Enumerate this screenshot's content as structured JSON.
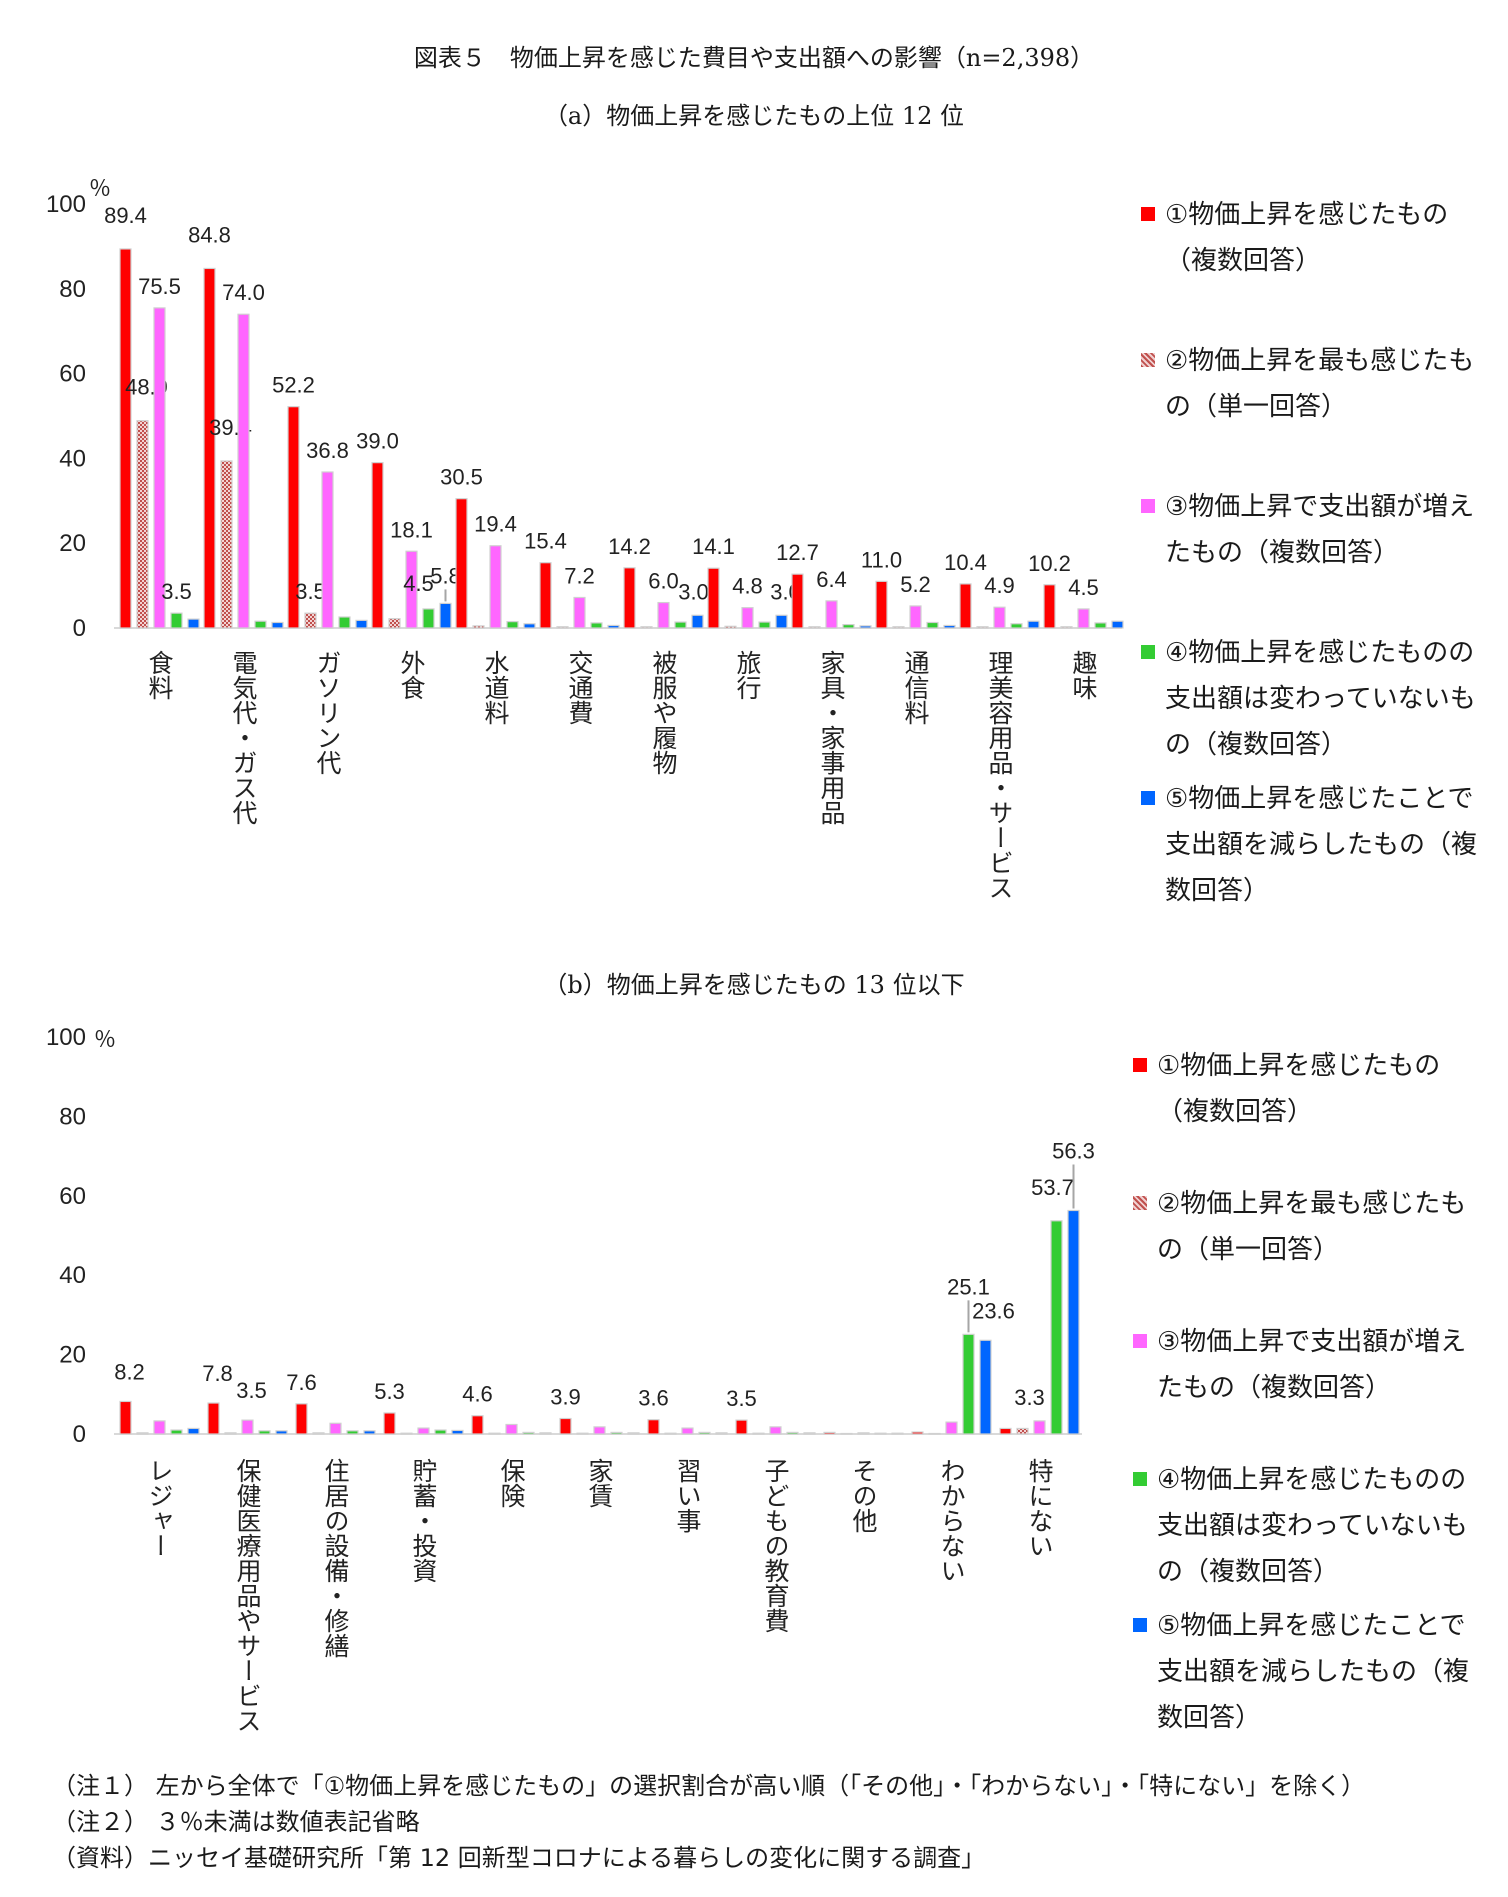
{
  "titles": {
    "main": "図表５　物価上昇を感じた費目や支出額への影響（n=2,398）",
    "sub_a": "（a）物価上昇を感じたもの上位 12 位",
    "sub_b": "（b）物価上昇を感じたもの 13 位以下"
  },
  "colors": {
    "s1": "#ff0000",
    "s2": "#c0504d",
    "s3": "#ff66ff",
    "s4": "#33cc33",
    "s5": "#0066ff"
  },
  "legend": [
    "①物価上昇を感じたもの（複数回答）",
    "②物価上昇を最も感じたもの（単一回答）",
    "③物価上昇で支出額が増えたもの（複数回答）",
    "④物価上昇を感じたものの支出額は変わっていないもの（複数回答）",
    "⑤物価上昇を感じたことで支出額を減らしたもの（複数回答）"
  ],
  "chart_data": [
    {
      "type": "bar",
      "title": "（a）物価上昇を感じたもの上位 12 位",
      "ylabel": "％",
      "ylim": [
        0,
        100
      ],
      "yticks": [
        0,
        20,
        40,
        60,
        80,
        100
      ],
      "categories": [
        "食料",
        "電気代・ガス代",
        "ガソリン代",
        "外食",
        "水道料",
        "交通費",
        "被服や履物",
        "旅行",
        "家具・家事用品",
        "通信料",
        "理美容用品・サービス",
        "趣味"
      ],
      "series": [
        {
          "name": "①物価上昇を感じたもの（複数回答）",
          "values": [
            89.4,
            84.8,
            52.2,
            39.0,
            30.5,
            15.4,
            14.2,
            14.1,
            12.7,
            11.0,
            10.4,
            10.2
          ],
          "labels": [
            "89.4",
            "84.8",
            "52.2",
            "39.0",
            "30.5",
            "15.4",
            "14.2",
            "14.1",
            "12.7",
            "11.0",
            "10.4",
            "10.2"
          ]
        },
        {
          "name": "②物価上昇を最も感じたもの（単一回答）",
          "values": [
            48.9,
            39.4,
            3.5,
            2.2,
            0.5,
            0.3,
            0.3,
            0.4,
            0.3,
            0.3,
            0.3,
            0.3
          ],
          "labels": [
            "48.9",
            "39.4",
            "3.5",
            "",
            "",
            "",
            "",
            "",
            "",
            "",
            "",
            ""
          ]
        },
        {
          "name": "③物価上昇で支出額が増えたもの（複数回答）",
          "values": [
            75.5,
            74.0,
            36.8,
            18.1,
            19.4,
            7.2,
            6.0,
            4.8,
            6.4,
            5.2,
            4.9,
            4.5
          ],
          "labels": [
            "75.5",
            "74.0",
            "36.8",
            "18.1",
            "19.4",
            "7.2",
            "6.0",
            "4.8",
            "6.4",
            "5.2",
            "4.9",
            "4.5"
          ]
        },
        {
          "name": "④物価上昇を感じたものの支出額は変わっていないもの（複数回答）",
          "values": [
            3.5,
            1.6,
            2.6,
            4.5,
            1.5,
            1.2,
            1.4,
            1.4,
            0.8,
            1.3,
            1.0,
            1.2
          ],
          "labels": [
            "3.5",
            "",
            "",
            "4.5",
            "",
            "",
            "",
            "",
            "",
            "",
            "",
            ""
          ]
        },
        {
          "name": "⑤物価上昇を感じたことで支出額を減らしたもの（複数回答）",
          "values": [
            2.1,
            1.3,
            1.8,
            5.8,
            1.0,
            0.6,
            3.0,
            3.0,
            0.5,
            0.6,
            1.6,
            1.6
          ],
          "labels": [
            "",
            "",
            "",
            "5.8",
            "",
            "",
            "3.0",
            "3.0",
            "",
            "",
            "",
            ""
          ]
        }
      ]
    },
    {
      "type": "bar",
      "title": "（b）物価上昇を感じたもの 13 位以下",
      "ylabel": "％",
      "ylim": [
        0,
        100
      ],
      "yticks": [
        0,
        20,
        40,
        60,
        80,
        100
      ],
      "categories": [
        "レジャー",
        "保健医療用品やサービス",
        "住居の設備・修繕",
        "貯蓄・投資",
        "保険",
        "家賃",
        "習い事",
        "子どもの教育費",
        "その他",
        "わからない",
        "特にない"
      ],
      "series": [
        {
          "name": "①物価上昇を感じたもの（複数回答）",
          "values": [
            8.2,
            7.8,
            7.6,
            5.3,
            4.6,
            3.9,
            3.6,
            3.5,
            0.4,
            0.5,
            1.4
          ],
          "labels": [
            "8.2",
            "7.8",
            "7.6",
            "5.3",
            "4.6",
            "3.9",
            "3.6",
            "3.5",
            "",
            "",
            ""
          ]
        },
        {
          "name": "②物価上昇を最も感じたもの（単一回答）",
          "values": [
            0.3,
            0.3,
            0.3,
            0.2,
            0.2,
            0.2,
            0.2,
            0.2,
            0.1,
            0.1,
            1.4
          ],
          "labels": [
            "",
            "",
            "",
            "",
            "",
            "",
            "",
            "",
            "",
            "",
            ""
          ]
        },
        {
          "name": "③物価上昇で支出額が増えたもの（複数回答）",
          "values": [
            3.3,
            3.5,
            2.7,
            1.5,
            2.4,
            1.8,
            1.5,
            1.8,
            0.3,
            3.0,
            3.3
          ],
          "labels": [
            "",
            "3.5",
            "",
            "",
            "",
            "",
            "",
            "",
            "",
            "",
            "3.3"
          ]
        },
        {
          "name": "④物価上昇を感じたものの支出額は変わっていないもの（複数回答）",
          "values": [
            1.0,
            0.8,
            0.8,
            1.0,
            0.4,
            0.4,
            0.4,
            0.4,
            0.2,
            25.1,
            53.7
          ],
          "labels": [
            "",
            "",
            "",
            "",
            "",
            "",
            "",
            "",
            "",
            "25.1",
            "53.7"
          ]
        },
        {
          "name": "⑤物価上昇を感じたことで支出額を減らしたもの（複数回答）",
          "values": [
            1.4,
            0.8,
            0.8,
            0.9,
            0.3,
            0.3,
            0.3,
            0.3,
            0.2,
            23.6,
            56.3
          ],
          "labels": [
            "",
            "",
            "",
            "",
            "",
            "",
            "",
            "",
            "",
            "23.6",
            "56.3"
          ]
        }
      ]
    }
  ],
  "notes": [
    "（注１） 左から全体で「①物価上昇を感じたもの」の選択割合が高い順（「その他」・「わからない」・「特にない」を除く）",
    "（注２） ３％未満は数値表記省略",
    "（資料）ニッセイ基礎研究所「第 12 回新型コロナによる暮らしの変化に関する調査」"
  ]
}
